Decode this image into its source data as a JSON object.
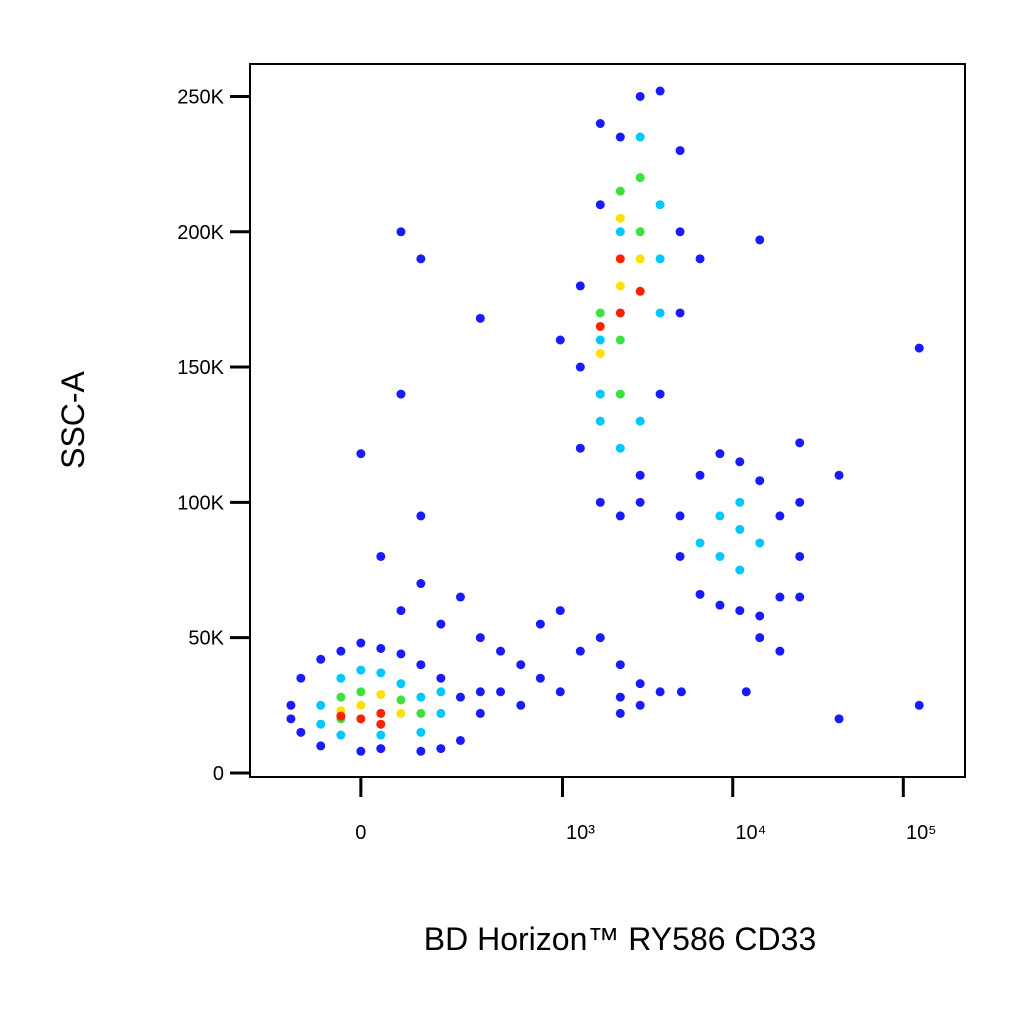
{
  "chart_data": {
    "type": "scatter",
    "x_label": "BD Horizon™ RY586 CD33",
    "y_label": "SSC-A",
    "xscale": "biexponential",
    "xlim": [
      -280,
      230000
    ],
    "ylim": [
      -1500,
      262000
    ],
    "xticks": [
      0,
      {
        "value": 1000,
        "label": "10³"
      },
      {
        "value": 10000,
        "label": "10⁴"
      },
      {
        "value": 100000,
        "label": "10⁵"
      }
    ],
    "yticks": [
      0,
      {
        "value": 50000,
        "label": "50K"
      },
      {
        "value": 100000,
        "label": "100K"
      },
      {
        "value": 150000,
        "label": "150K"
      },
      {
        "value": 200000,
        "label": "200K"
      },
      {
        "value": 250000,
        "label": "250K"
      }
    ],
    "series": [
      {
        "color": "#1a1aff",
        "x": [
          -144,
          -119,
          -119,
          -75,
          -75,
          -36,
          0,
          0,
          36,
          75,
          119,
          172,
          236,
          318,
          236,
          172,
          119,
          36,
          -144,
          318,
          75,
          119,
          172,
          236,
          318,
          425,
          564,
          739,
          970,
          1274,
          425,
          564,
          739,
          970,
          36,
          119,
          0,
          75,
          1670,
          2190,
          5000,
          12000,
          42000,
          124000,
          124000,
          24700,
          24700,
          42000,
          14400,
          75,
          119,
          318,
          2190,
          2864,
          3750,
          2864,
          2190,
          1670,
          2190,
          1274,
          2864,
          1274,
          3750,
          1274,
          4910,
          1670,
          4910,
          2190,
          4910,
          2864,
          3750,
          1670,
          6430,
          970,
          2864,
          4910,
          4910,
          6430,
          8410,
          11000,
          14400,
          18900,
          24700,
          18900,
          14400,
          11000,
          8410,
          6430,
          18900,
          14400,
          24700
        ],
        "values": [
          25000,
          35000,
          15000,
          42000,
          10000,
          45000,
          48000,
          8000,
          46000,
          44000,
          40000,
          35000,
          28000,
          22000,
          12000,
          9000,
          8000,
          9000,
          20000,
          30000,
          60000,
          70000,
          55000,
          65000,
          50000,
          45000,
          40000,
          55000,
          60000,
          45000,
          30000,
          25000,
          35000,
          30000,
          80000,
          95000,
          118000,
          140000,
          50000,
          40000,
          30000,
          30000,
          20000,
          25000,
          157000,
          122000,
          100000,
          110000,
          197000,
          200000,
          190000,
          168000,
          28000,
          25000,
          30000,
          33000,
          22000,
          100000,
          95000,
          120000,
          110000,
          150000,
          140000,
          180000,
          170000,
          210000,
          200000,
          235000,
          230000,
          250000,
          252000,
          240000,
          190000,
          160000,
          100000,
          80000,
          95000,
          110000,
          118000,
          115000,
          108000,
          95000,
          80000,
          65000,
          58000,
          60000,
          62000,
          66000,
          45000,
          50000,
          65000
        ]
      },
      {
        "color": "#00c8ff",
        "x": [
          -75,
          -36,
          0,
          36,
          75,
          119,
          172,
          119,
          36,
          -36,
          -75,
          172,
          1670,
          2190,
          1670,
          3750,
          2190,
          3750,
          2864,
          1670,
          2864,
          3750,
          8410,
          11000,
          11000,
          8410,
          14400,
          6430,
          11000
        ],
        "values": [
          25000,
          35000,
          38000,
          37000,
          33000,
          28000,
          22000,
          15000,
          14000,
          14000,
          18000,
          30000,
          130000,
          120000,
          160000,
          170000,
          200000,
          210000,
          235000,
          140000,
          130000,
          190000,
          80000,
          90000,
          75000,
          95000,
          85000,
          85000,
          100000
        ]
      },
      {
        "color": "#3ee03e",
        "x": [
          -36,
          0,
          75,
          119,
          36,
          -36,
          1670,
          2190,
          2864,
          2190,
          2864,
          2190
        ],
        "values": [
          28000,
          30000,
          27000,
          22000,
          18000,
          20000,
          170000,
          160000,
          200000,
          140000,
          220000,
          215000
        ]
      },
      {
        "color": "#ffe000",
        "x": [
          0,
          36,
          75,
          -36,
          2190,
          2864,
          1670,
          2190
        ],
        "values": [
          25000,
          29000,
          22000,
          23000,
          180000,
          190000,
          155000,
          205000
        ]
      },
      {
        "color": "#ff2000",
        "x": [
          0,
          36,
          -36,
          36,
          2190,
          2190,
          1670,
          2864
        ],
        "values": [
          20000,
          22000,
          21000,
          18000,
          170000,
          190000,
          165000,
          178000
        ]
      }
    ]
  }
}
